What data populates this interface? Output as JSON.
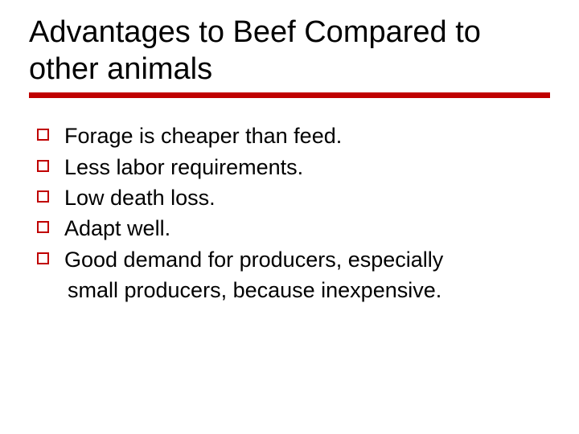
{
  "colors": {
    "accent": "#c00000",
    "text": "#000000",
    "background": "#ffffff"
  },
  "title": "Advantages to Beef Compared to other animals",
  "bullets": [
    "Forage is cheaper than feed.",
    "Less labor requirements.",
    "Low death loss.",
    "Adapt well.",
    "Good demand for producers, especially"
  ],
  "continuation": " small producers, because inexpensive.",
  "style": {
    "title_fontsize": 38,
    "body_fontsize": 27,
    "underline_thickness": 7,
    "bullet_box_size": 15,
    "bullet_box_border": 2
  }
}
